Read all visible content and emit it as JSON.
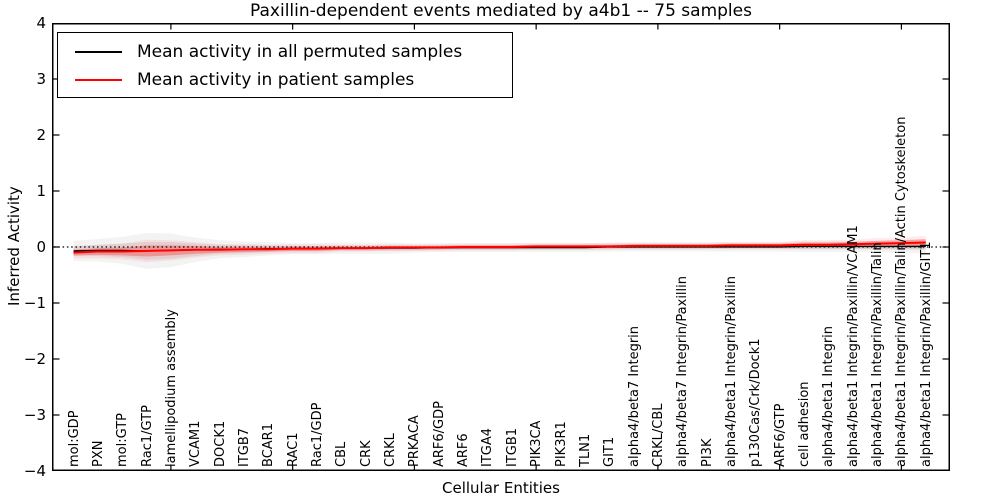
{
  "figure": {
    "title": "Paxillin-dependent events mediated by a4b1 -- 75 samples",
    "xlabel": "Cellular Entities",
    "ylabel": "Inferred Activity"
  },
  "legend": {
    "position": "upper left",
    "entries": [
      {
        "label": "Mean activity in all permuted samples",
        "color": "#000000"
      },
      {
        "label": "Mean activity in patient samples",
        "color": "#ff0000"
      }
    ]
  },
  "chart_data": {
    "type": "line",
    "title": "Paxillin-dependent events mediated by a4b1 -- 75 samples",
    "xlabel": "Cellular Entities",
    "ylabel": "Inferred Activity",
    "ylim": [
      -4,
      4
    ],
    "yticks": [
      -4,
      -3,
      -2,
      -1,
      0,
      1,
      2,
      3,
      4
    ],
    "xtick_indices": [
      4,
      9,
      14,
      19,
      24,
      29,
      34
    ],
    "grid": false,
    "legend_position": "upper left",
    "zero_line": {
      "y": 0,
      "style": "dotted",
      "color": "#000000"
    },
    "categories": [
      "mol:GDP",
      "PXN",
      "mol:GTP",
      "Rac1/GTP",
      "lamellipodium assembly",
      "VCAM1",
      "DOCK1",
      "ITGB7",
      "BCAR1",
      "RAC1",
      "Rac1/GDP",
      "CBL",
      "CRK",
      "CRKL",
      "PRKACA",
      "ARF6/GDP",
      "ARF6",
      "ITGA4",
      "ITGB1",
      "PIK3CA",
      "PIK3R1",
      "TLN1",
      "GIT1",
      "alpha4/beta7 Integrin",
      "CRKL/CBL",
      "alpha4/beta7 Integrin/Paxillin",
      "PI3K",
      "alpha4/beta1 Integrin/Paxillin",
      "p130Cas/Crk/Dock1",
      "ARF6/GTP",
      "cell adhesion",
      "alpha4/beta1 Integrin",
      "alpha4/beta1 Integrin/Paxillin/VCAM1",
      "alpha4/beta1 Integrin/Paxillin/Talin",
      "alpha4/beta1 Integrin/Paxillin/Talin/Actin Cytoskeleton",
      "alpha4/beta1 Integrin/Paxillin/GIT1"
    ],
    "series": [
      {
        "name": "Mean activity in all permuted samples",
        "color": "#000000",
        "line_width": 1.3,
        "values": [
          -0.07,
          -0.06,
          -0.06,
          -0.07,
          -0.06,
          -0.05,
          -0.04,
          -0.04,
          -0.03,
          -0.03,
          -0.03,
          -0.02,
          -0.02,
          -0.02,
          -0.02,
          -0.01,
          -0.01,
          -0.01,
          -0.01,
          -0.01,
          -0.01,
          -0.01,
          0,
          0,
          0,
          0,
          0,
          0,
          0,
          0,
          0.01,
          0.01,
          0.01,
          0.01,
          0.01,
          0.01
        ],
        "band_halfwidth": [
          0.09,
          0.1,
          0.12,
          0.16,
          0.15,
          0.11,
          0.08,
          0.07,
          0.06,
          0.05,
          0.05,
          0.05,
          0.05,
          0.05,
          0.04,
          0.04,
          0.04,
          0.04,
          0.04,
          0.04,
          0.04,
          0.04,
          0.04,
          0.04,
          0.04,
          0.04,
          0.04,
          0.04,
          0.04,
          0.04,
          0.05,
          0.05,
          0.05,
          0.05,
          0.06,
          0.06
        ],
        "band_color": "#888888"
      },
      {
        "name": "Mean activity in patient samples",
        "color": "#ff0000",
        "line_width": 2,
        "values": [
          -0.1,
          -0.08,
          -0.08,
          -0.07,
          -0.06,
          -0.05,
          -0.05,
          -0.04,
          -0.04,
          -0.03,
          -0.03,
          -0.02,
          -0.02,
          -0.01,
          -0.01,
          -0.01,
          0,
          0,
          0,
          0.01,
          0.01,
          0.01,
          0.01,
          0.02,
          0.02,
          0.02,
          0.02,
          0.03,
          0.03,
          0.03,
          0.04,
          0.04,
          0.05,
          0.06,
          0.07,
          0.08
        ],
        "band_halfwidth": [
          0.05,
          0.06,
          0.07,
          0.1,
          0.09,
          0.07,
          0.05,
          0.05,
          0.04,
          0.04,
          0.04,
          0.03,
          0.03,
          0.03,
          0.03,
          0.03,
          0.03,
          0.03,
          0.03,
          0.03,
          0.03,
          0.03,
          0.03,
          0.03,
          0.03,
          0.03,
          0.03,
          0.03,
          0.03,
          0.03,
          0.04,
          0.04,
          0.04,
          0.05,
          0.05,
          0.06
        ],
        "band_color": "#ff0000"
      }
    ]
  }
}
